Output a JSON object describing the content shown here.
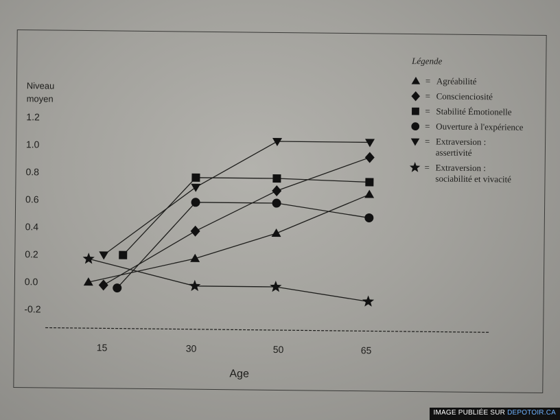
{
  "chart_data": {
    "type": "line",
    "ylabel_line1": "Niveau",
    "ylabel_line2": "moyen",
    "xlabel": "Age",
    "y_ticks": [
      "1.2",
      "1.0",
      "0.8",
      "0.6",
      "0.4",
      "0.2",
      "0.0",
      "-0.2"
    ],
    "x_ticks": [
      "15",
      "30",
      "50",
      "65"
    ],
    "ylim": [
      -0.2,
      1.2
    ],
    "grid": false,
    "legend_position": "top-right",
    "legend_title": "Légende",
    "series": [
      {
        "name": "Agréabilité",
        "marker": "triangle-up",
        "points": [
          [
            13,
            0.0
          ],
          [
            30,
            0.18
          ],
          [
            45,
            0.37
          ],
          [
            65,
            0.66
          ]
        ]
      },
      {
        "name": "Conscienciosité",
        "marker": "diamond",
        "points": [
          [
            15,
            -0.02
          ],
          [
            30,
            0.38
          ],
          [
            45,
            0.68
          ],
          [
            65,
            0.93
          ]
        ]
      },
      {
        "name": "Stabilité Émotionelle",
        "marker": "square",
        "points": [
          [
            18,
            0.2
          ],
          [
            30,
            0.77
          ],
          [
            45,
            0.77
          ],
          [
            65,
            0.75
          ]
        ]
      },
      {
        "name": "Ouverture à l'expérience",
        "marker": "circle",
        "points": [
          [
            17,
            -0.04
          ],
          [
            30,
            0.59
          ],
          [
            45,
            0.59
          ],
          [
            65,
            0.49
          ]
        ]
      },
      {
        "name": "Extraversion : assertivité",
        "label_lines": [
          "Extraversion :",
          "assertivité"
        ],
        "marker": "triangle-down",
        "points": [
          [
            15,
            0.2
          ],
          [
            30,
            0.7
          ],
          [
            45,
            1.04
          ],
          [
            65,
            1.04
          ]
        ]
      },
      {
        "name": "Extraversion : sociabilité et vivacité",
        "label_lines": [
          "Extraversion :",
          "sociabilité et vivacité"
        ],
        "marker": "star",
        "points": [
          [
            13,
            0.17
          ],
          [
            30,
            -0.02
          ],
          [
            45,
            -0.02
          ],
          [
            65,
            -0.12
          ]
        ]
      }
    ]
  },
  "legend_equals": "=",
  "watermark": {
    "prefix": "IMAGE PUBLIÉE SUR ",
    "link": "DEPOTOIR.CA"
  }
}
